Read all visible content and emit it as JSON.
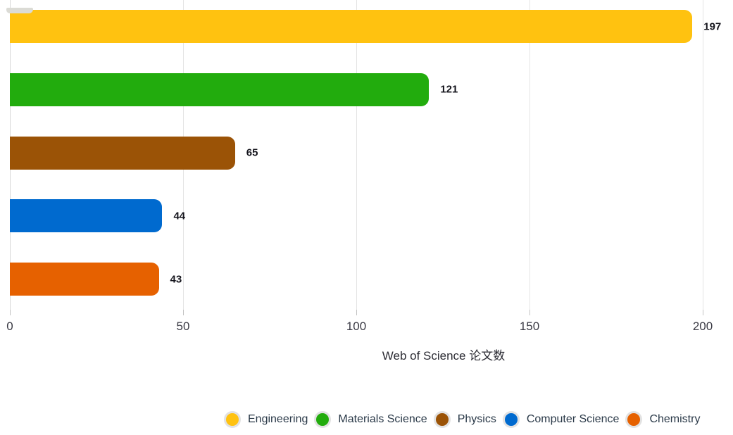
{
  "chart_data": {
    "type": "bar",
    "orientation": "horizontal",
    "title": "",
    "categories": [
      "Engineering",
      "Materials Science",
      "Physics",
      "Computer Science",
      "Chemistry"
    ],
    "values": [
      197,
      121,
      65,
      44,
      43
    ],
    "value_labels": [
      "197",
      "121",
      "65",
      "44",
      "43"
    ],
    "colors": [
      "#FFC210",
      "#22AC0D",
      "#9B5306",
      "#006ACF",
      "#E66100"
    ],
    "xlabel": "Web of Science 论文数",
    "ylabel": "",
    "xlim": [
      0,
      200
    ],
    "xticks": [
      0,
      50,
      100,
      150,
      200
    ],
    "grid": true,
    "legend_position": "bottom",
    "legend_items": [
      {
        "label": "Engineering",
        "color": "#FFC210"
      },
      {
        "label": "Materials Science",
        "color": "#22AC0D"
      },
      {
        "label": "Physics",
        "color": "#9B5306"
      },
      {
        "label": "Computer Science",
        "color": "#006ACF"
      },
      {
        "label": "Chemistry",
        "color": "#E66100"
      }
    ]
  }
}
